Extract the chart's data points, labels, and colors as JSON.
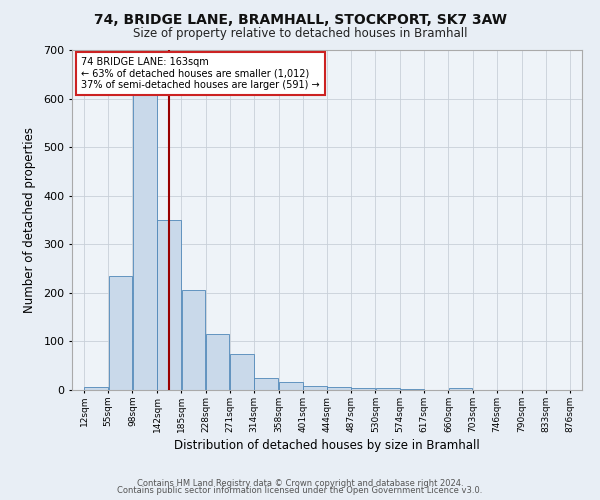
{
  "title_line1": "74, BRIDGE LANE, BRAMHALL, STOCKPORT, SK7 3AW",
  "title_line2": "Size of property relative to detached houses in Bramhall",
  "xlabel": "Distribution of detached houses by size in Bramhall",
  "ylabel": "Number of detached properties",
  "bin_labels": [
    "12sqm",
    "55sqm",
    "98sqm",
    "142sqm",
    "185sqm",
    "228sqm",
    "271sqm",
    "314sqm",
    "358sqm",
    "401sqm",
    "444sqm",
    "487sqm",
    "530sqm",
    "574sqm",
    "617sqm",
    "660sqm",
    "703sqm",
    "746sqm",
    "790sqm",
    "833sqm",
    "876sqm"
  ],
  "bin_edges": [
    12,
    55,
    98,
    142,
    185,
    228,
    271,
    314,
    358,
    401,
    444,
    487,
    530,
    574,
    617,
    660,
    703,
    746,
    790,
    833,
    876,
    919
  ],
  "bar_values": [
    7,
    235,
    620,
    350,
    205,
    115,
    75,
    25,
    17,
    8,
    6,
    4,
    4,
    3,
    0,
    5,
    0,
    0,
    0,
    0,
    0
  ],
  "bar_color": "#c9d9ea",
  "bar_edge_color": "#4f87b8",
  "property_label": "74 BRIDGE LANE: 163sqm",
  "annotation_line1": "← 63% of detached houses are smaller (1,012)",
  "annotation_line2": "37% of semi-detached houses are larger (591) →",
  "vline_color": "#990000",
  "vline_x": 163,
  "annotation_box_facecolor": "#ffffff",
  "annotation_box_edgecolor": "#cc2222",
  "ylim": [
    0,
    700
  ],
  "yticks": [
    0,
    100,
    200,
    300,
    400,
    500,
    600,
    700
  ],
  "fig_bg_color": "#e8eef5",
  "plot_bg_color": "#eef3f8",
  "footer_line1": "Contains HM Land Registry data © Crown copyright and database right 2024.",
  "footer_line2": "Contains public sector information licensed under the Open Government Licence v3.0.",
  "grid_color": "#c8d0d8"
}
